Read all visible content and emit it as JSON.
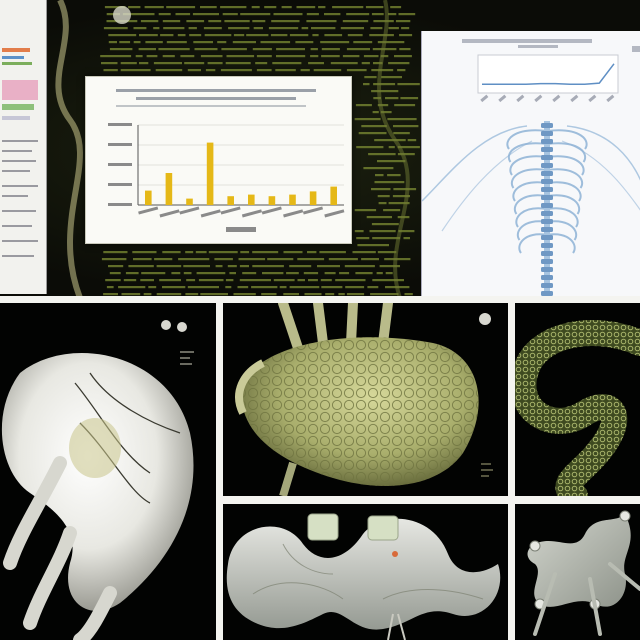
{
  "scene": {
    "colors": {
      "background": "#0a0b06",
      "code_text": "#8a9a3a",
      "bar_fill": "#e5b817",
      "panel_white": "#fafaf6",
      "tissue_green": "#a9ae6c",
      "skeleton_blue": "#8fb3d6"
    }
  },
  "chart_data": {
    "type": "bar",
    "categories": [
      "",
      "",
      "",
      "",
      "",
      "",
      "",
      "",
      "",
      ""
    ],
    "values": [
      18,
      40,
      8,
      78,
      11,
      13,
      11,
      13,
      17,
      23
    ],
    "ylim": [
      0,
      100
    ],
    "grid": true,
    "legend": "none"
  },
  "mini_chart": {
    "type": "line",
    "values": [
      12,
      12,
      12,
      12,
      13,
      13,
      12,
      12,
      14,
      48
    ],
    "ylim": [
      0,
      60
    ]
  },
  "tiles": [
    {
      "icon": "kidney-3d-render-icon"
    },
    {
      "icon": "liver-3d-render-icon"
    },
    {
      "icon": "vessel-mesh-render-icon"
    },
    {
      "icon": "colon-segment-render-icon"
    },
    {
      "icon": "bone-joint-render-icon"
    }
  ]
}
